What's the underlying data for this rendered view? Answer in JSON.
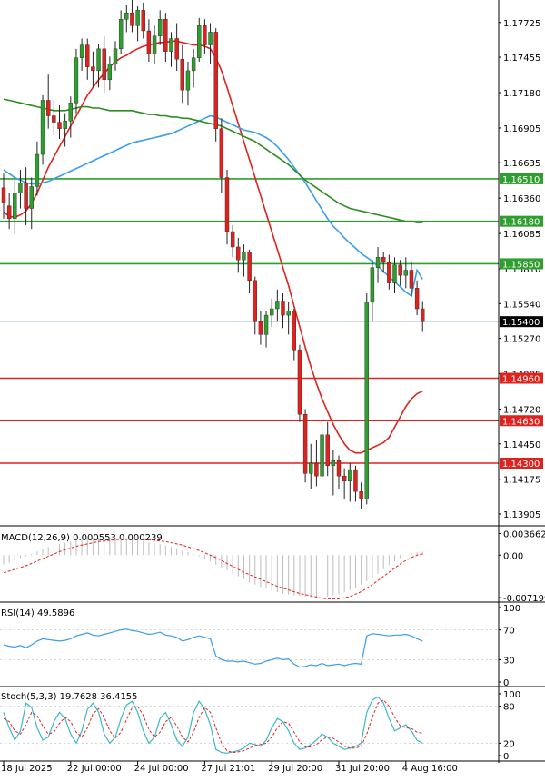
{
  "chart_data": {
    "type": "candlestick",
    "price_axis": {
      "ticks": [
        "1.17725",
        "1.17455",
        "1.17180",
        "1.16905",
        "1.16635",
        "1.16360",
        "1.16085",
        "1.15810",
        "1.15540",
        "1.15270",
        "1.14995",
        "1.14720",
        "1.14450",
        "1.14175",
        "1.13905"
      ],
      "tick_values": [
        1.17725,
        1.17455,
        1.1718,
        1.16905,
        1.16635,
        1.1636,
        1.16085,
        1.1581,
        1.1554,
        1.1527,
        1.14995,
        1.1472,
        1.1445,
        1.14175,
        1.13905
      ],
      "range": [
        1.1382,
        1.179
      ]
    },
    "x_axis": {
      "labels": [
        "18 Jul 2025",
        "22 Jul 00:00",
        "24 Jul 00:00",
        "27 Jul 21:01",
        "29 Jul 20:00",
        "31 Jul 20:00",
        "4 Aug 16:00"
      ],
      "label_bar_index": [
        0,
        12,
        24,
        36,
        48,
        60,
        72
      ]
    },
    "levels": {
      "resistance": [
        {
          "label": "1.16510",
          "value": 1.1651,
          "color": "#2e9e2e"
        },
        {
          "label": "1.16180",
          "value": 1.1618,
          "color": "#2e9e2e"
        },
        {
          "label": "1.15850",
          "value": 1.1585,
          "color": "#2e9e2e"
        }
      ],
      "support": [
        {
          "label": "1.14960",
          "value": 1.1496,
          "color": "#e0221e"
        },
        {
          "label": "1.14630",
          "value": 1.1463,
          "color": "#e0221e"
        },
        {
          "label": "1.14300",
          "value": 1.143,
          "color": "#e0221e"
        }
      ],
      "current_price": {
        "label": "1.15400",
        "value": 1.154
      }
    },
    "ohlc": [
      [
        1.1644,
        1.1655,
        1.162,
        1.1632
      ],
      [
        1.163,
        1.164,
        1.1612,
        1.162
      ],
      [
        1.162,
        1.165,
        1.1608,
        1.164
      ],
      [
        1.164,
        1.1658,
        1.1628,
        1.1648
      ],
      [
        1.1648,
        1.166,
        1.1615,
        1.1628
      ],
      [
        1.1628,
        1.1652,
        1.1612,
        1.1645
      ],
      [
        1.1645,
        1.168,
        1.1638,
        1.167
      ],
      [
        1.167,
        1.1716,
        1.1662,
        1.1712
      ],
      [
        1.1712,
        1.1732,
        1.169,
        1.17
      ],
      [
        1.17,
        1.1712,
        1.1685,
        1.1695
      ],
      [
        1.1695,
        1.1708,
        1.1682,
        1.169
      ],
      [
        1.169,
        1.1702,
        1.1676,
        1.1696
      ],
      [
        1.1696,
        1.1715,
        1.1683,
        1.171
      ],
      [
        1.171,
        1.1752,
        1.1702,
        1.1745
      ],
      [
        1.1745,
        1.176,
        1.1735,
        1.1755
      ],
      [
        1.1755,
        1.176,
        1.1728,
        1.1738
      ],
      [
        1.1738,
        1.175,
        1.1722,
        1.1735
      ],
      [
        1.1735,
        1.1756,
        1.1722,
        1.1752
      ],
      [
        1.1752,
        1.1762,
        1.1718,
        1.1728
      ],
      [
        1.1728,
        1.1746,
        1.172,
        1.174
      ],
      [
        1.174,
        1.1758,
        1.1735,
        1.1752
      ],
      [
        1.1752,
        1.1782,
        1.1748,
        1.1775
      ],
      [
        1.1775,
        1.1786,
        1.1765,
        1.178
      ],
      [
        1.178,
        1.1792,
        1.1765,
        1.177
      ],
      [
        1.177,
        1.1785,
        1.1758,
        1.1782
      ],
      [
        1.1782,
        1.1788,
        1.176,
        1.1766
      ],
      [
        1.1766,
        1.1775,
        1.1742,
        1.1748
      ],
      [
        1.1748,
        1.177,
        1.174,
        1.1762
      ],
      [
        1.1762,
        1.1782,
        1.1755,
        1.1775
      ],
      [
        1.1775,
        1.178,
        1.1742,
        1.175
      ],
      [
        1.175,
        1.1765,
        1.1738,
        1.176
      ],
      [
        1.176,
        1.1772,
        1.1735,
        1.1744
      ],
      [
        1.1744,
        1.1755,
        1.171,
        1.172
      ],
      [
        1.172,
        1.1742,
        1.1708,
        1.1735
      ],
      [
        1.1735,
        1.1752,
        1.1722,
        1.1745
      ],
      [
        1.1745,
        1.1776,
        1.1742,
        1.177
      ],
      [
        1.177,
        1.1775,
        1.1748,
        1.1755
      ],
      [
        1.1755,
        1.1772,
        1.174,
        1.1765
      ],
      [
        1.1765,
        1.1768,
        1.168,
        1.169
      ],
      [
        1.169,
        1.1698,
        1.164,
        1.1652
      ],
      [
        1.1652,
        1.1658,
        1.16,
        1.161
      ],
      [
        1.161,
        1.1615,
        1.159,
        1.1598
      ],
      [
        1.1598,
        1.1605,
        1.1578,
        1.1588
      ],
      [
        1.1588,
        1.16,
        1.1575,
        1.1594
      ],
      [
        1.1594,
        1.1596,
        1.1562,
        1.1572
      ],
      [
        1.1572,
        1.1575,
        1.153,
        1.154
      ],
      [
        1.154,
        1.1548,
        1.1522,
        1.153
      ],
      [
        1.153,
        1.1548,
        1.152,
        1.1545
      ],
      [
        1.1545,
        1.1558,
        1.1536,
        1.155
      ],
      [
        1.155,
        1.1565,
        1.154,
        1.1556
      ],
      [
        1.1556,
        1.1562,
        1.1535,
        1.1545
      ],
      [
        1.1545,
        1.1555,
        1.153,
        1.1548
      ],
      [
        1.1548,
        1.155,
        1.151,
        1.1518
      ],
      [
        1.1518,
        1.1522,
        1.1462,
        1.1468
      ],
      [
        1.1468,
        1.1472,
        1.1415,
        1.1422
      ],
      [
        1.1422,
        1.1445,
        1.141,
        1.143
      ],
      [
        1.143,
        1.1448,
        1.1412,
        1.142
      ],
      [
        1.142,
        1.146,
        1.1416,
        1.1452
      ],
      [
        1.1452,
        1.1462,
        1.142,
        1.1428
      ],
      [
        1.1428,
        1.144,
        1.1405,
        1.1432
      ],
      [
        1.1432,
        1.1436,
        1.141,
        1.142
      ],
      [
        1.142,
        1.1426,
        1.1402,
        1.1416
      ],
      [
        1.1416,
        1.143,
        1.14,
        1.1425
      ],
      [
        1.1425,
        1.1428,
        1.14,
        1.1408
      ],
      [
        1.1408,
        1.1415,
        1.1394,
        1.1402
      ],
      [
        1.1402,
        1.1562,
        1.1398,
        1.1555
      ],
      [
        1.1555,
        1.1588,
        1.154,
        1.1582
      ],
      [
        1.1582,
        1.1598,
        1.157,
        1.159
      ],
      [
        1.159,
        1.1594,
        1.1578,
        1.1586
      ],
      [
        1.1586,
        1.1592,
        1.1565,
        1.157
      ],
      [
        1.157,
        1.159,
        1.1562,
        1.1584
      ],
      [
        1.1584,
        1.1588,
        1.1568,
        1.1576
      ],
      [
        1.1576,
        1.159,
        1.1566,
        1.158
      ],
      [
        1.158,
        1.1586,
        1.156,
        1.1566
      ],
      [
        1.1566,
        1.1572,
        1.1545,
        1.155
      ],
      [
        1.155,
        1.1556,
        1.1532,
        1.154
      ]
    ],
    "moving_averages": [
      {
        "color": "#e0221e",
        "values": [
          1.1625,
          1.1622,
          1.1621,
          1.1623,
          1.1626,
          1.1632,
          1.164,
          1.165,
          1.166,
          1.1668,
          1.1676,
          1.1684,
          1.1692,
          1.17,
          1.1708,
          1.1716,
          1.1722,
          1.1728,
          1.1733,
          1.1738,
          1.1742,
          1.1745,
          1.1747,
          1.175,
          1.1752,
          1.1754,
          1.1755,
          1.1756,
          1.1757,
          1.1757,
          1.1758,
          1.1758,
          1.1757,
          1.1756,
          1.1755,
          1.1755,
          1.1754,
          1.1752,
          1.1745,
          1.1735,
          1.1722,
          1.1708,
          1.1694,
          1.168,
          1.1666,
          1.1652,
          1.1638,
          1.1624,
          1.161,
          1.1596,
          1.1582,
          1.1568,
          1.1552,
          1.1536,
          1.152,
          1.1505,
          1.1492,
          1.148,
          1.147,
          1.146,
          1.1452,
          1.1445,
          1.144,
          1.1438,
          1.1438,
          1.144,
          1.1442,
          1.1444,
          1.1446,
          1.145,
          1.1458,
          1.1466,
          1.1474,
          1.148,
          1.1484,
          1.1486
        ]
      },
      {
        "color": "#3a9ee8",
        "values": [
          1.1658,
          1.1655,
          1.1652,
          1.165,
          1.1648,
          1.1647,
          1.1647,
          1.1648,
          1.1649,
          1.1651,
          1.1653,
          1.1655,
          1.1657,
          1.1659,
          1.1661,
          1.1663,
          1.1665,
          1.1667,
          1.1669,
          1.1671,
          1.1673,
          1.1675,
          1.1677,
          1.1679,
          1.168,
          1.1681,
          1.1682,
          1.1683,
          1.1684,
          1.1685,
          1.1686,
          1.1688,
          1.169,
          1.1692,
          1.1694,
          1.1696,
          1.1698,
          1.17,
          1.1699,
          1.1697,
          1.1695,
          1.1693,
          1.1691,
          1.1689,
          1.1688,
          1.1687,
          1.1685,
          1.1683,
          1.168,
          1.1676,
          1.1671,
          1.1666,
          1.166,
          1.1654,
          1.1648,
          1.1641,
          1.1634,
          1.1627,
          1.162,
          1.1614,
          1.161,
          1.1605,
          1.1601,
          1.1597,
          1.1593,
          1.159,
          1.1587,
          1.1583,
          1.1579,
          1.1575,
          1.1571,
          1.1567,
          1.1563,
          1.156,
          1.158,
          1.1573
        ]
      },
      {
        "color": "#2e8b22",
        "values": [
          1.1713,
          1.1712,
          1.1711,
          1.171,
          1.1709,
          1.1708,
          1.1707,
          1.1706,
          1.1705,
          1.1704,
          1.1704,
          1.1704,
          1.1705,
          1.1706,
          1.1707,
          1.1707,
          1.1706,
          1.1706,
          1.1705,
          1.1704,
          1.1704,
          1.1704,
          1.1704,
          1.1704,
          1.1703,
          1.1702,
          1.1701,
          1.1701,
          1.17,
          1.17,
          1.1699,
          1.1699,
          1.1698,
          1.1698,
          1.1697,
          1.1696,
          1.1695,
          1.1694,
          1.1693,
          1.1692,
          1.169,
          1.1688,
          1.1686,
          1.1684,
          1.1682,
          1.168,
          1.1677,
          1.1674,
          1.1671,
          1.1668,
          1.1665,
          1.1662,
          1.1658,
          1.1654,
          1.165,
          1.1647,
          1.1644,
          1.1641,
          1.1638,
          1.1635,
          1.1632,
          1.163,
          1.1628,
          1.1627,
          1.1626,
          1.1625,
          1.1624,
          1.1623,
          1.1622,
          1.1621,
          1.162,
          1.1619,
          1.1618,
          1.1618,
          1.1617,
          1.1617
        ]
      }
    ],
    "macd": {
      "label": "MACD(12,26,9) 0.000553 0.000239",
      "ticks": [
        "0.003662",
        "0.00",
        "-0.007199"
      ],
      "tick_values": [
        0.003662,
        0,
        -0.007199
      ],
      "range": [
        -0.0078,
        0.0045
      ],
      "histogram": [
        -0.0016,
        -0.0013,
        -0.0009,
        -0.0005,
        -0.0002,
        0.0002,
        0.0006,
        0.001,
        0.0014,
        0.0017,
        0.0019,
        0.0021,
        0.0023,
        0.0025,
        0.0027,
        0.0028,
        0.0029,
        0.003,
        0.003,
        0.003,
        0.003,
        0.003,
        0.0029,
        0.0028,
        0.0026,
        0.0024,
        0.0022,
        0.002,
        0.0018,
        0.0016,
        0.0014,
        0.0011,
        0.0008,
        0.0005,
        0.0002,
        -0.0002,
        -0.0006,
        -0.0011,
        -0.0016,
        -0.0021,
        -0.0026,
        -0.0031,
        -0.0036,
        -0.0041,
        -0.0046,
        -0.005,
        -0.0054,
        -0.0057,
        -0.006,
        -0.0063,
        -0.0065,
        -0.0067,
        -0.0068,
        -0.0069,
        -0.007,
        -0.0071,
        -0.0071,
        -0.0071,
        -0.007,
        -0.0068,
        -0.0066,
        -0.0063,
        -0.006,
        -0.0056,
        -0.005,
        -0.0044,
        -0.0038,
        -0.0031,
        -0.0024,
        -0.0017,
        -0.0011,
        -0.0005,
        0.0,
        0.0003,
        0.0005,
        0.0006
      ],
      "signal": [
        -0.003,
        -0.0027,
        -0.0024,
        -0.0021,
        -0.0018,
        -0.0014,
        -0.001,
        -0.0006,
        -0.0002,
        0.0002,
        0.0006,
        0.0009,
        0.0012,
        0.0015,
        0.0017,
        0.0019,
        0.0021,
        0.0023,
        0.0024,
        0.0025,
        0.0026,
        0.0027,
        0.0027,
        0.0027,
        0.0027,
        0.0027,
        0.0026,
        0.0025,
        0.0024,
        0.0023,
        0.0021,
        0.0019,
        0.0017,
        0.0014,
        0.0011,
        0.0008,
        0.0004,
        0.0,
        -0.0004,
        -0.0009,
        -0.0014,
        -0.0019,
        -0.0024,
        -0.0029,
        -0.0033,
        -0.0037,
        -0.0041,
        -0.0045,
        -0.0049,
        -0.0053,
        -0.0056,
        -0.0059,
        -0.0062,
        -0.0065,
        -0.0067,
        -0.0069,
        -0.0071,
        -0.0073,
        -0.0074,
        -0.0074,
        -0.0074,
        -0.0072,
        -0.007,
        -0.0066,
        -0.0062,
        -0.0056,
        -0.005,
        -0.0043,
        -0.0036,
        -0.0029,
        -0.0022,
        -0.0015,
        -0.0009,
        -0.0004,
        0.0,
        0.0002
      ]
    },
    "rsi": {
      "label": "RSI(14) 49.5896",
      "ticks": [
        "100",
        "70",
        "30",
        "0"
      ],
      "tick_values": [
        100,
        70,
        30,
        0
      ],
      "values": [
        50,
        48,
        47,
        49,
        46,
        50,
        55,
        58,
        57,
        56,
        55,
        56,
        58,
        62,
        64,
        66,
        63,
        62,
        64,
        66,
        68,
        70,
        71,
        69,
        68,
        66,
        64,
        65,
        67,
        63,
        62,
        60,
        55,
        57,
        60,
        62,
        60,
        58,
        35,
        30,
        28,
        28,
        27,
        28,
        26,
        24,
        25,
        28,
        30,
        32,
        30,
        31,
        24,
        20,
        21,
        23,
        22,
        25,
        22,
        23,
        24,
        22,
        24,
        25,
        24,
        62,
        65,
        64,
        63,
        62,
        63,
        63,
        64,
        62,
        58,
        55
      ]
    },
    "stoch": {
      "label": "Stoch(5,3,3) 19.7628 36.4155",
      "ticks": [
        "100",
        "80",
        "20",
        "0"
      ],
      "tick_values": [
        100,
        80,
        20,
        0
      ],
      "k": [
        70,
        45,
        25,
        40,
        85,
        78,
        45,
        25,
        30,
        55,
        70,
        60,
        35,
        20,
        40,
        75,
        85,
        70,
        35,
        20,
        30,
        60,
        82,
        88,
        70,
        40,
        20,
        30,
        60,
        70,
        50,
        25,
        15,
        30,
        70,
        88,
        75,
        50,
        10,
        5,
        4,
        6,
        8,
        12,
        20,
        18,
        15,
        25,
        45,
        60,
        55,
        40,
        20,
        10,
        12,
        18,
        25,
        35,
        30,
        20,
        15,
        10,
        12,
        15,
        20,
        70,
        90,
        95,
        85,
        60,
        40,
        45,
        50,
        40,
        25,
        20
      ],
      "d": [
        60,
        55,
        40,
        35,
        50,
        70,
        65,
        48,
        35,
        38,
        52,
        62,
        55,
        38,
        30,
        45,
        68,
        76,
        62,
        40,
        28,
        38,
        58,
        78,
        80,
        65,
        42,
        30,
        38,
        55,
        62,
        48,
        30,
        22,
        38,
        62,
        78,
        70,
        45,
        20,
        8,
        5,
        6,
        8,
        12,
        16,
        18,
        20,
        30,
        45,
        55,
        52,
        38,
        22,
        14,
        14,
        18,
        26,
        30,
        28,
        22,
        15,
        12,
        12,
        15,
        35,
        62,
        85,
        90,
        80,
        62,
        48,
        45,
        44,
        38,
        36
      ]
    }
  }
}
